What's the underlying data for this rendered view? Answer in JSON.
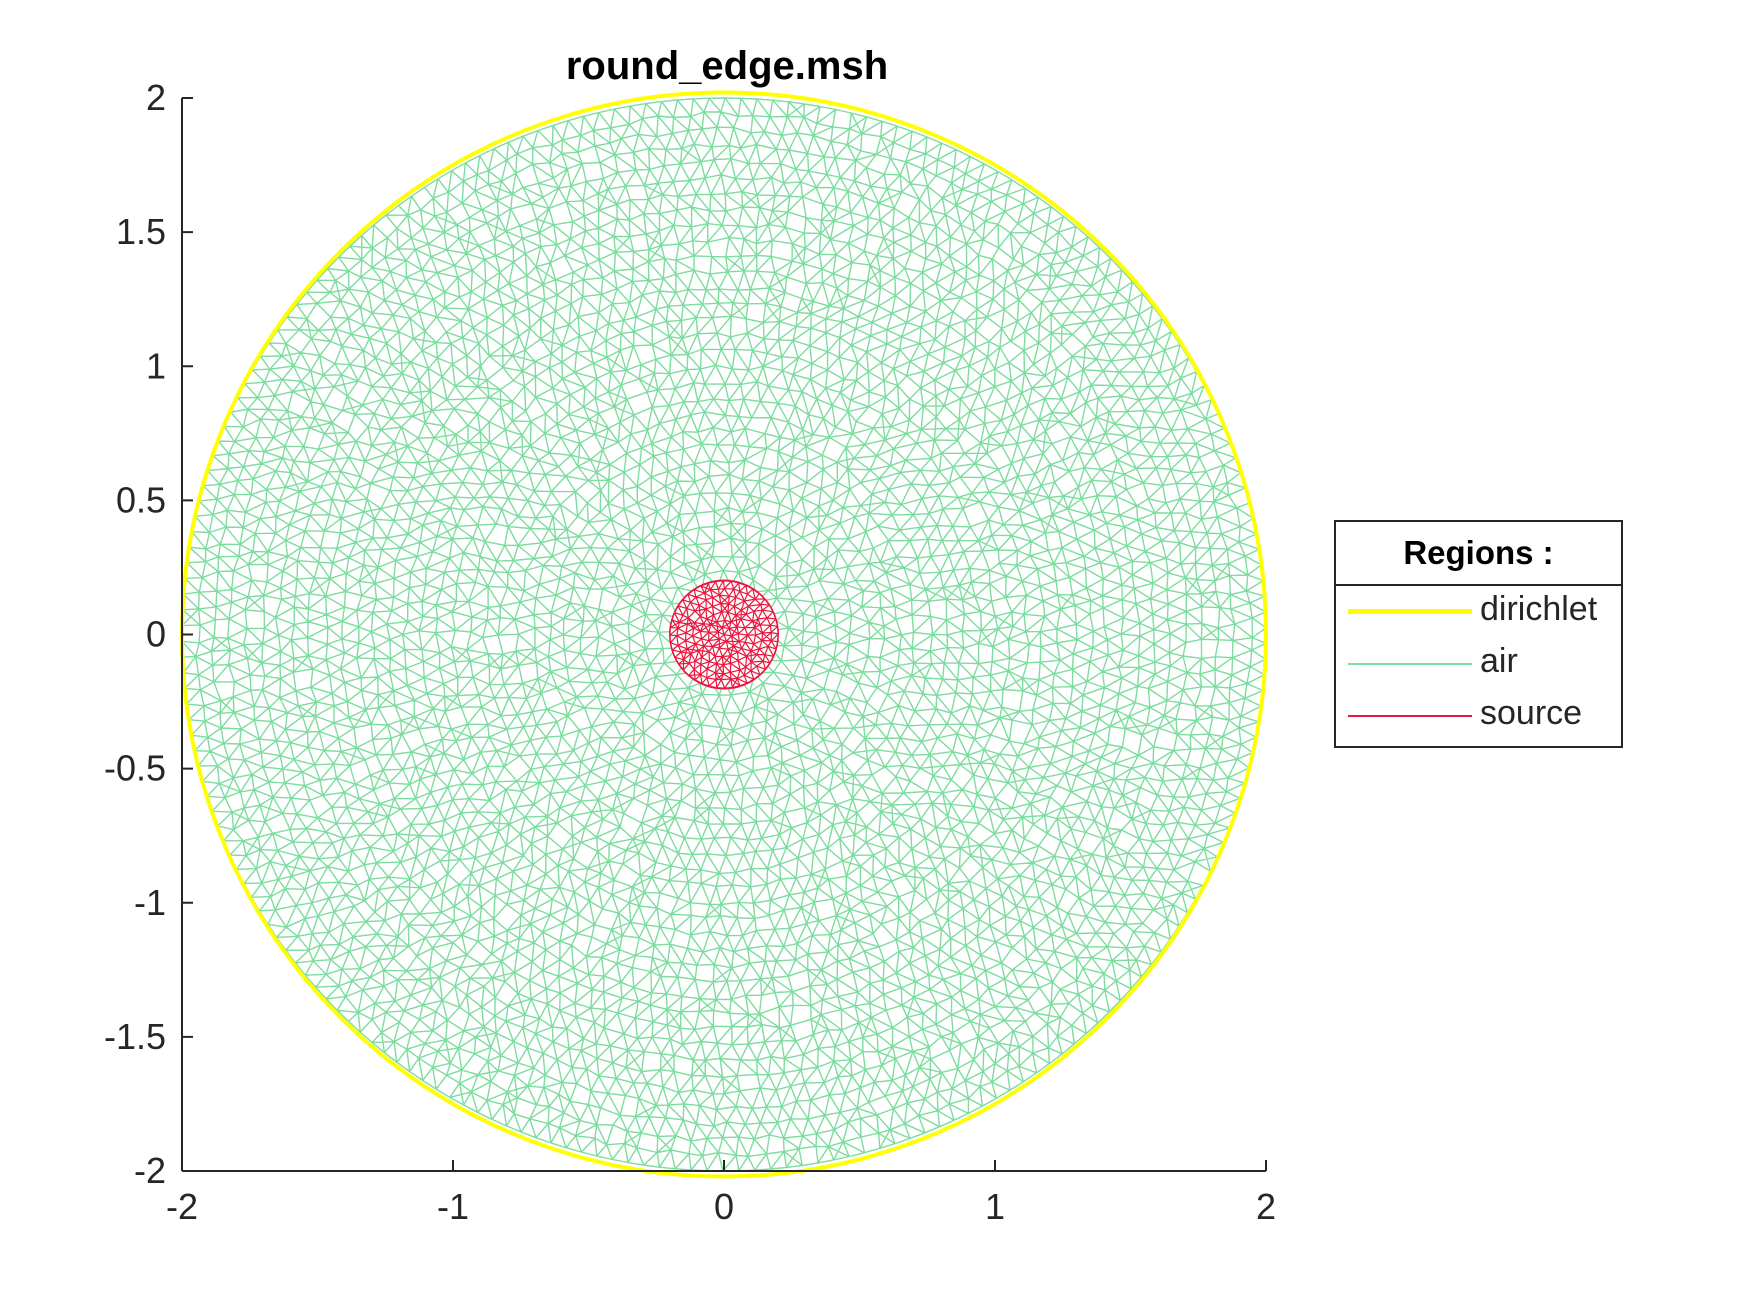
{
  "chart_data": {
    "type": "mesh",
    "title": "round_edge.msh",
    "xlabel": "",
    "ylabel": "",
    "xlim": [
      -2,
      2
    ],
    "ylim": [
      -2,
      2
    ],
    "x_ticks": [
      "-2",
      "-1",
      "0",
      "1",
      "2"
    ],
    "y_ticks": [
      "2",
      "1.5",
      "1",
      "0.5",
      "0",
      "-0.5",
      "-1",
      "-1.5",
      "-2"
    ],
    "grid": false,
    "legend": {
      "title": "Regions :",
      "placement": "outside-right",
      "items": [
        {
          "label": "dirichlet",
          "color": "#ffff00"
        },
        {
          "label": "air",
          "color": "#7ddc9f"
        },
        {
          "label": "source",
          "color": "#e8173c"
        }
      ]
    },
    "regions": [
      {
        "name": "dirichlet",
        "shape": "circle-boundary",
        "center": [
          0,
          0
        ],
        "radius": 2,
        "color": "#ffff00"
      },
      {
        "name": "air",
        "shape": "triangular-mesh-disk",
        "center": [
          0,
          0
        ],
        "radius": 2,
        "color": "#7ddc9f"
      },
      {
        "name": "source",
        "shape": "triangular-mesh-disk",
        "center": [
          0,
          0
        ],
        "radius": 0.2,
        "color": "#e8173c"
      }
    ]
  }
}
